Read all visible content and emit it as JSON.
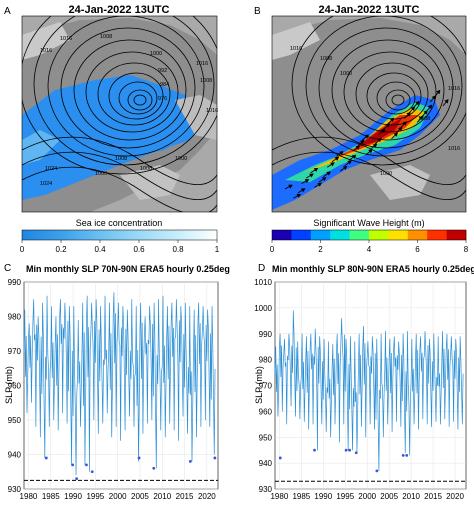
{
  "chart_data": [
    {
      "panel": "A",
      "type": "map",
      "title": "24-Jan-2022 13UTC",
      "colorbar": {
        "label": "Sea ice concentration",
        "ticks": [
          "0",
          "0.2",
          "0.4",
          "0.6",
          "0.8",
          "1"
        ],
        "colors": [
          "#1f86e0",
          "#3ea0ea",
          "#6cc0f2",
          "#9bd9f6",
          "#c8eefb",
          "#ffffff"
        ]
      },
      "contour_labels": [
        "1016",
        "1016",
        "1008",
        "1000",
        "992",
        "984",
        "976",
        "1008",
        "1000",
        "1016",
        "1008",
        "1016",
        "1024",
        "1000",
        "1008",
        "1024"
      ]
    },
    {
      "panel": "B",
      "type": "map",
      "title": "24-Jan-2022 13UTC",
      "colorbar": {
        "label": "Significant Wave Height (m)",
        "ticks": [
          "0",
          "2",
          "4",
          "6",
          "8"
        ],
        "colors": [
          "#1a00b0",
          "#0040ff",
          "#00a0ff",
          "#00e0e0",
          "#40ff80",
          "#c0ff00",
          "#ffe000",
          "#ff9000",
          "#ff3000",
          "#c00000"
        ]
      },
      "contour_labels": [
        "1008",
        "1000",
        "1016",
        "1008",
        "1016",
        "1000",
        "1016"
      ]
    },
    {
      "panel": "C",
      "type": "line",
      "title": "Min monthly SLP 70N-90N ERA5 hourly 0.25deg",
      "ylabel": "SLP (mb)",
      "xlim": [
        1979,
        2022.5
      ],
      "ylim": [
        930,
        990
      ],
      "xticks": [
        1980,
        1985,
        1990,
        1995,
        2000,
        2005,
        2010,
        2015,
        2020
      ],
      "yticks": [
        930,
        940,
        950,
        960,
        970,
        980,
        990
      ],
      "reference_line": 932.5,
      "series_color": "#2b8fd6",
      "envelope": [
        [
          1979.5,
          982
        ],
        [
          1980.5,
          978
        ],
        [
          1981.5,
          985
        ],
        [
          1982.5,
          980
        ],
        [
          1983.5,
          984
        ],
        [
          1984.5,
          986
        ],
        [
          1985.5,
          983
        ],
        [
          1986.5,
          980
        ],
        [
          1987.5,
          985
        ],
        [
          1988.5,
          984
        ],
        [
          1989.5,
          983
        ],
        [
          1990.5,
          983
        ],
        [
          1991.5,
          979
        ],
        [
          1992.5,
          984
        ],
        [
          1993.5,
          986
        ],
        [
          1994.5,
          984
        ],
        [
          1995.5,
          985
        ],
        [
          1996.5,
          983
        ],
        [
          1997.5,
          986
        ],
        [
          1998.5,
          984
        ],
        [
          1999.5,
          987
        ],
        [
          2000.5,
          984
        ],
        [
          2001.5,
          983
        ],
        [
          2002.5,
          982
        ],
        [
          2003.5,
          985
        ],
        [
          2004.5,
          983
        ],
        [
          2005.5,
          984
        ],
        [
          2006.5,
          980
        ],
        [
          2007.5,
          983
        ],
        [
          2008.5,
          984
        ],
        [
          2009.5,
          985
        ],
        [
          2010.5,
          986
        ],
        [
          2011.5,
          983
        ],
        [
          2012.5,
          984
        ],
        [
          2013.5,
          985
        ],
        [
          2014.5,
          983
        ],
        [
          2015.5,
          984
        ],
        [
          2016.5,
          983
        ],
        [
          2017.5,
          982
        ],
        [
          2018.5,
          984
        ],
        [
          2019.5,
          983
        ],
        [
          2020.5,
          982
        ],
        [
          2021.5,
          983
        ]
      ],
      "minima": [
        [
          1979.5,
          952
        ],
        [
          1980.5,
          955
        ],
        [
          1981.5,
          948
        ],
        [
          1982.5,
          945
        ],
        [
          1983.5,
          939
        ],
        [
          1984.5,
          948
        ],
        [
          1985.5,
          950
        ],
        [
          1986.5,
          947
        ],
        [
          1987.5,
          952
        ],
        [
          1988.5,
          949
        ],
        [
          1989.5,
          937
        ],
        [
          1990.5,
          934
        ],
        [
          1991.5,
          948
        ],
        [
          1992.5,
          937
        ],
        [
          1993.5,
          935
        ],
        [
          1994.5,
          950
        ],
        [
          1995.5,
          946
        ],
        [
          1996.5,
          949
        ],
        [
          1997.5,
          952
        ],
        [
          1998.5,
          945
        ],
        [
          1999.5,
          948
        ],
        [
          2000.5,
          944
        ],
        [
          2001.5,
          947
        ],
        [
          2002.5,
          951
        ],
        [
          2003.5,
          948
        ],
        [
          2004.5,
          938
        ],
        [
          2005.5,
          946
        ],
        [
          2006.5,
          949
        ],
        [
          2007.5,
          950
        ],
        [
          2008.5,
          936
        ],
        [
          2009.5,
          947
        ],
        [
          2010.5,
          945
        ],
        [
          2011.5,
          949
        ],
        [
          2012.5,
          947
        ],
        [
          2013.5,
          944
        ],
        [
          2014.5,
          951
        ],
        [
          2015.5,
          946
        ],
        [
          2016.5,
          938
        ],
        [
          2017.5,
          945
        ],
        [
          2018.5,
          948
        ],
        [
          2019.5,
          950
        ],
        [
          2020.5,
          948
        ],
        [
          2021.5,
          940
        ]
      ],
      "markers": [
        [
          1984.0,
          939
        ],
        [
          1989.9,
          937
        ],
        [
          1990.8,
          933
        ],
        [
          1993.0,
          937
        ],
        [
          1994.3,
          935
        ],
        [
          2004.8,
          939
        ],
        [
          2008.1,
          936
        ],
        [
          2016.3,
          938
        ],
        [
          2021.8,
          939
        ]
      ]
    },
    {
      "panel": "D",
      "type": "line",
      "title": "Min monthly SLP 80N-90N ERA5 hourly 0.25deg",
      "ylabel": "SLP (mb)",
      "xlim": [
        1979,
        2022.5
      ],
      "ylim": [
        930,
        1010
      ],
      "xticks": [
        1980,
        1985,
        1990,
        1995,
        2000,
        2005,
        2010,
        2015,
        2020
      ],
      "yticks": [
        930,
        940,
        950,
        960,
        970,
        980,
        990,
        1000,
        1010
      ],
      "reference_line": 933,
      "series_color": "#2b8fd6",
      "envelope": [
        [
          1979.5,
          985
        ],
        [
          1980.5,
          990
        ],
        [
          1981.5,
          988
        ],
        [
          1982.5,
          990
        ],
        [
          1983.5,
          999
        ],
        [
          1984.5,
          987
        ],
        [
          1985.5,
          990
        ],
        [
          1986.5,
          989
        ],
        [
          1987.5,
          990
        ],
        [
          1988.5,
          992
        ],
        [
          1989.5,
          989
        ],
        [
          1990.5,
          988
        ],
        [
          1991.5,
          987
        ],
        [
          1992.5,
          986
        ],
        [
          1993.5,
          990
        ],
        [
          1994.5,
          996
        ],
        [
          1995.5,
          988
        ],
        [
          1996.5,
          989
        ],
        [
          1997.5,
          987
        ],
        [
          1998.5,
          990
        ],
        [
          1999.5,
          993
        ],
        [
          2000.5,
          987
        ],
        [
          2001.5,
          989
        ],
        [
          2002.5,
          988
        ],
        [
          2003.5,
          990
        ],
        [
          2004.5,
          991
        ],
        [
          2005.5,
          988
        ],
        [
          2006.5,
          989
        ],
        [
          2007.5,
          987
        ],
        [
          2008.5,
          990
        ],
        [
          2009.5,
          991
        ],
        [
          2010.5,
          988
        ],
        [
          2011.5,
          990
        ],
        [
          2012.5,
          989
        ],
        [
          2013.5,
          991
        ],
        [
          2014.5,
          988
        ],
        [
          2015.5,
          990
        ],
        [
          2016.5,
          989
        ],
        [
          2017.5,
          991
        ],
        [
          2018.5,
          990
        ],
        [
          2019.5,
          989
        ],
        [
          2020.5,
          988
        ],
        [
          2021.5,
          989
        ]
      ],
      "minima": [
        [
          1979.5,
          958
        ],
        [
          1980.5,
          960
        ],
        [
          1981.5,
          955
        ],
        [
          1982.5,
          962
        ],
        [
          1983.5,
          958
        ],
        [
          1984.5,
          957
        ],
        [
          1985.5,
          956
        ],
        [
          1986.5,
          953
        ],
        [
          1987.5,
          955
        ],
        [
          1988.5,
          945
        ],
        [
          1989.5,
          955
        ],
        [
          1990.5,
          952
        ],
        [
          1991.5,
          950
        ],
        [
          1992.5,
          955
        ],
        [
          1993.5,
          948
        ],
        [
          1994.5,
          955
        ],
        [
          1995.5,
          945
        ],
        [
          1996.5,
          945
        ],
        [
          1997.5,
          944
        ],
        [
          1998.5,
          954
        ],
        [
          1999.5,
          950
        ],
        [
          2000.5,
          955
        ],
        [
          2001.5,
          953
        ],
        [
          2002.5,
          937
        ],
        [
          2003.5,
          950
        ],
        [
          2004.5,
          955
        ],
        [
          2005.5,
          952
        ],
        [
          2006.5,
          956
        ],
        [
          2007.5,
          954
        ],
        [
          2008.5,
          944
        ],
        [
          2009.5,
          943
        ],
        [
          2010.5,
          955
        ],
        [
          2011.5,
          953
        ],
        [
          2012.5,
          957
        ],
        [
          2013.5,
          955
        ],
        [
          2014.5,
          954
        ],
        [
          2015.5,
          956
        ],
        [
          2016.5,
          955
        ],
        [
          2017.5,
          957
        ],
        [
          2018.5,
          954
        ],
        [
          2019.5,
          956
        ],
        [
          2020.5,
          953
        ],
        [
          2021.5,
          955
        ]
      ],
      "markers": [
        [
          1980.2,
          942
        ],
        [
          1988.0,
          945
        ],
        [
          1995.2,
          945
        ],
        [
          1996.0,
          945
        ],
        [
          1997.5,
          944
        ],
        [
          2002.2,
          937
        ],
        [
          2008.2,
          943
        ],
        [
          2009.0,
          943
        ]
      ]
    }
  ]
}
